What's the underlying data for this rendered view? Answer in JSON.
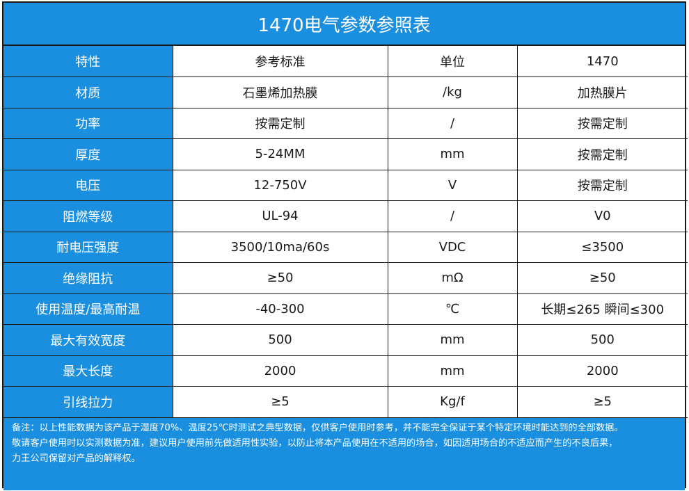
{
  "title": "1470电气参数参照表",
  "colors": {
    "header_blue": "#1a8fe0",
    "border": "#1a1a1a",
    "text": "#1a1a1a"
  },
  "rows": [
    {
      "label": "特性",
      "standard": "参考标准",
      "unit": "单位",
      "value": "1470"
    },
    {
      "label": "材质",
      "standard": "石墨烯加热膜",
      "unit": "/kg",
      "value": "加热膜片"
    },
    {
      "label": "功率",
      "standard": "按需定制",
      "unit": "/",
      "value": "按需定制"
    },
    {
      "label": "厚度",
      "standard": "5-24MM",
      "unit": "mm",
      "value": "按需定制"
    },
    {
      "label": "电压",
      "standard": "12-750V",
      "unit": "V",
      "value": "按需定制"
    },
    {
      "label": "阻燃等级",
      "standard": "UL-94",
      "unit": "/",
      "value": "V0"
    },
    {
      "label": "耐电压强度",
      "standard": "3500/10ma/60s",
      "unit": "VDC",
      "value": "≤3500"
    },
    {
      "label": "绝缘阻抗",
      "standard": "≥50",
      "unit": "mΩ",
      "value": "≥50"
    },
    {
      "label": "使用温度/最高耐温",
      "standard": "-40-300",
      "unit": "℃",
      "value": "长期≤265  瞬间≤300"
    },
    {
      "label": "最大有效宽度",
      "standard": "500",
      "unit": "mm",
      "value": "500"
    },
    {
      "label": "最大长度",
      "standard": "2000",
      "unit": "mm",
      "value": "2000"
    },
    {
      "label": "引线拉力",
      "standard": "≥5",
      "unit": "Kg/f",
      "value": "≥5"
    }
  ],
  "note": {
    "line1": "备注：以上性能数据为该产品于湿度70%、温度25℃时测试之典型数据，仅供客户使用时参考，并不能完全保证于某个特定环境时能达到的全部数据。",
    "line2": "敬请客户使用时以实测数据为准，建议用户使用前先做适用性实验，以防止将本产品使用在不适用的场合，如因适用场合的不适应而产生的不良后果，",
    "line3": "力王公司保留对产品的解释权。"
  }
}
